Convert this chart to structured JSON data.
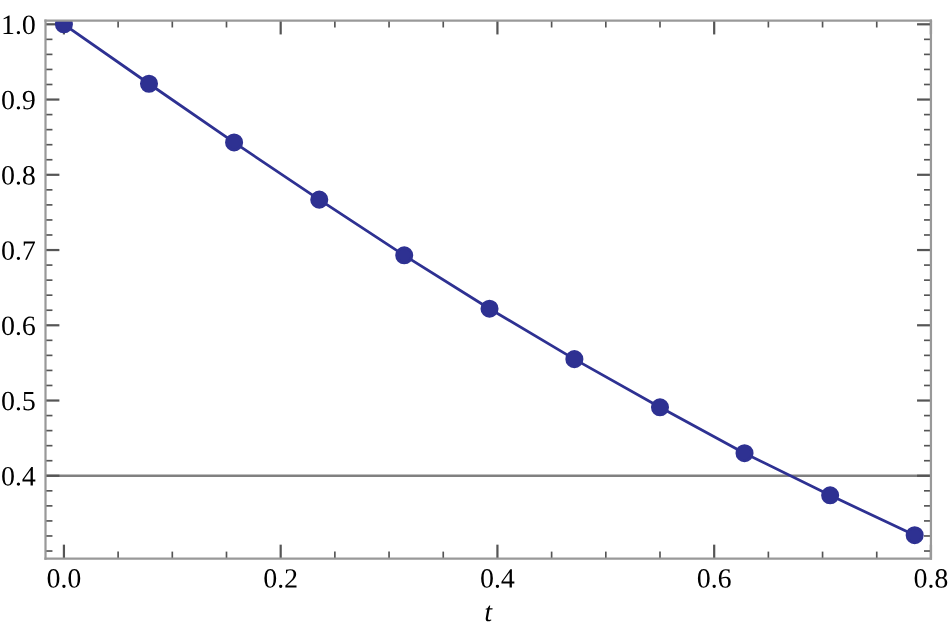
{
  "chart_data": {
    "type": "line",
    "xlabel": "t",
    "x": [
      0,
      0.0785,
      0.157,
      0.2356,
      0.314,
      0.3927,
      0.471,
      0.55,
      0.628,
      0.707,
      0.785
    ],
    "series": [
      {
        "color": "#2e3192",
        "values": [
          1.0,
          0.921,
          0.843,
          0.767,
          0.693,
          0.622,
          0.555,
          0.491,
          0.43,
          0.374,
          0.321
        ]
      }
    ],
    "marker": "circle",
    "line_style": "solid",
    "xlim": [
      -0.017,
      0.8
    ],
    "xticks": [
      {
        "value": 0,
        "label": "0.0"
      },
      0.2,
      0.4,
      0.6,
      0.8
    ],
    "ylim": [
      0.29,
      1.005
    ],
    "yticks": [
      0.4,
      0.5,
      0.6,
      0.7,
      0.8,
      0.9,
      {
        "value": 1.0,
        "label": "1.0"
      }
    ],
    "ref_lines": [
      {
        "axis": "y",
        "value": 0.4,
        "color": "#808080"
      }
    ],
    "grid": false,
    "legend": false
  }
}
